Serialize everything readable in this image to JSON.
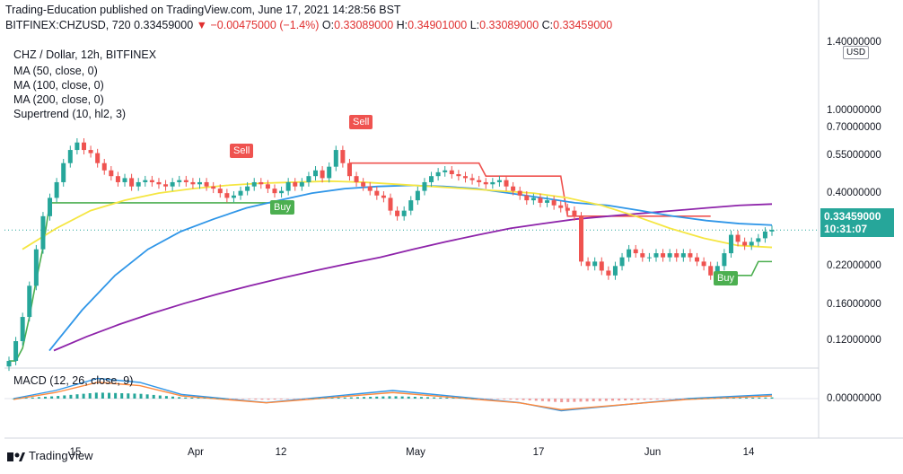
{
  "header": {
    "publisher_line": "Trading-Education published on TradingView.com, June 17, 2021 14:28:56 BST",
    "symbol": "BITFINEX:CHZUSD, 720",
    "last": "0.33459000",
    "change": "−0.00475000 (−1.4%)",
    "open_label": "O:",
    "open": "0.33089000",
    "high_label": "H:",
    "high": "0.34901000",
    "low_label": "L:",
    "low": "0.33089000",
    "close_label": "C:",
    "close": "0.33459000"
  },
  "legend": {
    "title": "CHZ / Dollar, 12h, BITFINEX",
    "ma50": "MA (50, close, 0)",
    "ma100": "MA (100, close, 0)",
    "ma200": "MA (200, close, 0)",
    "supertrend": "Supertrend (10, hl2, 3)",
    "macd": "MACD (12, 26, close, 9)"
  },
  "currency_button": "USD",
  "price_tag": {
    "price": "0.33459000",
    "countdown": "10:31:07"
  },
  "signals": {
    "sell": "Sell",
    "buy": "Buy"
  },
  "brand": "TradingView",
  "colors": {
    "up": "#26a69a",
    "down": "#ef5350",
    "ma50": "#f5e642",
    "ma100": "#2f96e8",
    "ma200": "#8e24aa",
    "supertrend_up": "#4caf50",
    "supertrend_down": "#ef5350",
    "macd_line": "#2f96e8",
    "signal_line": "#ff8a3d"
  },
  "chart_data": {
    "type": "candlestick",
    "y_scale": "log",
    "y_ticks": [
      "1.40000000",
      "1.00000000",
      "0.70000000",
      "0.55000000",
      "0.40000000",
      "0.22000000",
      "0.16000000",
      "0.12000000"
    ],
    "y_tick_values": [
      1.4,
      1.0,
      0.7,
      0.55,
      0.4,
      0.22,
      0.16,
      0.12
    ],
    "x_ticks": [
      "15",
      "Apr",
      "12",
      "May",
      "17",
      "Jun",
      "14"
    ],
    "macd_ticks": [
      "0.00000000"
    ],
    "ohlc_closes": [
      0.1,
      0.12,
      0.15,
      0.2,
      0.28,
      0.38,
      0.45,
      0.52,
      0.62,
      0.7,
      0.75,
      0.7,
      0.68,
      0.62,
      0.58,
      0.55,
      0.52,
      0.54,
      0.5,
      0.52,
      0.53,
      0.52,
      0.51,
      0.5,
      0.52,
      0.53,
      0.52,
      0.51,
      0.52,
      0.5,
      0.49,
      0.47,
      0.45,
      0.46,
      0.48,
      0.5,
      0.52,
      0.51,
      0.49,
      0.47,
      0.48,
      0.52,
      0.5,
      0.52,
      0.55,
      0.58,
      0.54,
      0.6,
      0.7,
      0.62,
      0.55,
      0.52,
      0.5,
      0.48,
      0.46,
      0.45,
      0.4,
      0.38,
      0.4,
      0.44,
      0.48,
      0.52,
      0.55,
      0.57,
      0.58,
      0.56,
      0.55,
      0.54,
      0.53,
      0.52,
      0.51,
      0.52,
      0.53,
      0.5,
      0.48,
      0.46,
      0.44,
      0.45,
      0.43,
      0.44,
      0.42,
      0.41,
      0.4,
      0.38,
      0.25,
      0.24,
      0.25,
      0.23,
      0.22,
      0.24,
      0.26,
      0.28,
      0.27,
      0.26,
      0.26,
      0.27,
      0.26,
      0.27,
      0.26,
      0.27,
      0.26,
      0.25,
      0.24,
      0.22,
      0.24,
      0.27,
      0.32,
      0.3,
      0.29,
      0.3,
      0.31,
      0.33,
      0.335
    ],
    "ma50": [
      0.28,
      0.34,
      0.4,
      0.44,
      0.47,
      0.49,
      0.505,
      0.515,
      0.52,
      0.525,
      0.52,
      0.51,
      0.5,
      0.49,
      0.48,
      0.47,
      0.45,
      0.42,
      0.38,
      0.34,
      0.31,
      0.29,
      0.285
    ],
    "ma100": [
      0.11,
      0.16,
      0.22,
      0.28,
      0.33,
      0.37,
      0.41,
      0.44,
      0.47,
      0.49,
      0.5,
      0.505,
      0.5,
      0.49,
      0.47,
      0.45,
      0.43,
      0.42,
      0.4,
      0.38,
      0.365,
      0.355,
      0.35
    ],
    "ma200": [
      0.11,
      0.125,
      0.14,
      0.155,
      0.17,
      0.185,
      0.2,
      0.215,
      0.23,
      0.245,
      0.26,
      0.28,
      0.3,
      0.32,
      0.34,
      0.355,
      0.37,
      0.38,
      0.39,
      0.4,
      0.41,
      0.42,
      0.425
    ],
    "supertrend_sell": 0.55,
    "supertrend_buy": 0.22,
    "macd": [
      0,
      0.02,
      0.05,
      0.04,
      0.01,
      0,
      -0.01,
      0,
      0.01,
      0.02,
      0.01,
      0,
      -0.01,
      -0.03,
      -0.02,
      -0.01,
      0,
      0.005,
      0.01
    ]
  }
}
